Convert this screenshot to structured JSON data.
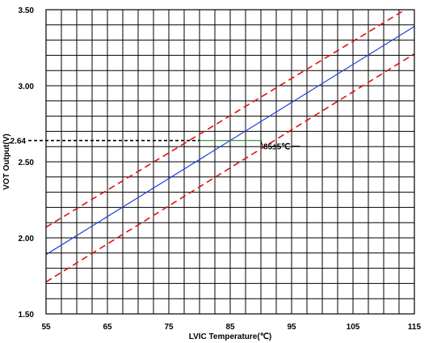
{
  "chart_data": {
    "type": "line",
    "xlabel": "LVIC Temperature(℃)",
    "ylabel": "VOT Output(V)",
    "xlim": [
      55,
      115
    ],
    "ylim": [
      1.5,
      3.5
    ],
    "x_ticks": [
      55,
      65,
      75,
      85,
      95,
      105,
      115
    ],
    "x_tick_labels": [
      "55",
      "65",
      "75",
      "85",
      "95",
      "105",
      "115"
    ],
    "y_ticks": [
      1.5,
      2.0,
      2.5,
      3.0,
      3.5
    ],
    "y_tick_labels": [
      "1.50",
      "2.00",
      "2.50",
      "3.00",
      "3.50"
    ],
    "grid": true,
    "series": [
      {
        "style": "solid",
        "color": "#1f3fe0",
        "x": [
          55,
          115
        ],
        "y": [
          1.89,
          3.39
        ]
      },
      {
        "style": "dashed",
        "color": "#e01010",
        "x": [
          55,
          113.5
        ],
        "y": [
          2.07,
          3.5
        ]
      },
      {
        "style": "dashed",
        "color": "#e01010",
        "x": [
          55,
          115
        ],
        "y": [
          1.71,
          3.21
        ]
      }
    ],
    "annotations": {
      "ref_value": 2.64,
      "ref_label": "2.64",
      "ref_x_end": 80,
      "range_x_start": 80,
      "range_x_end": 90,
      "range_label": "85±5℃",
      "range_label_x": 90
    }
  }
}
